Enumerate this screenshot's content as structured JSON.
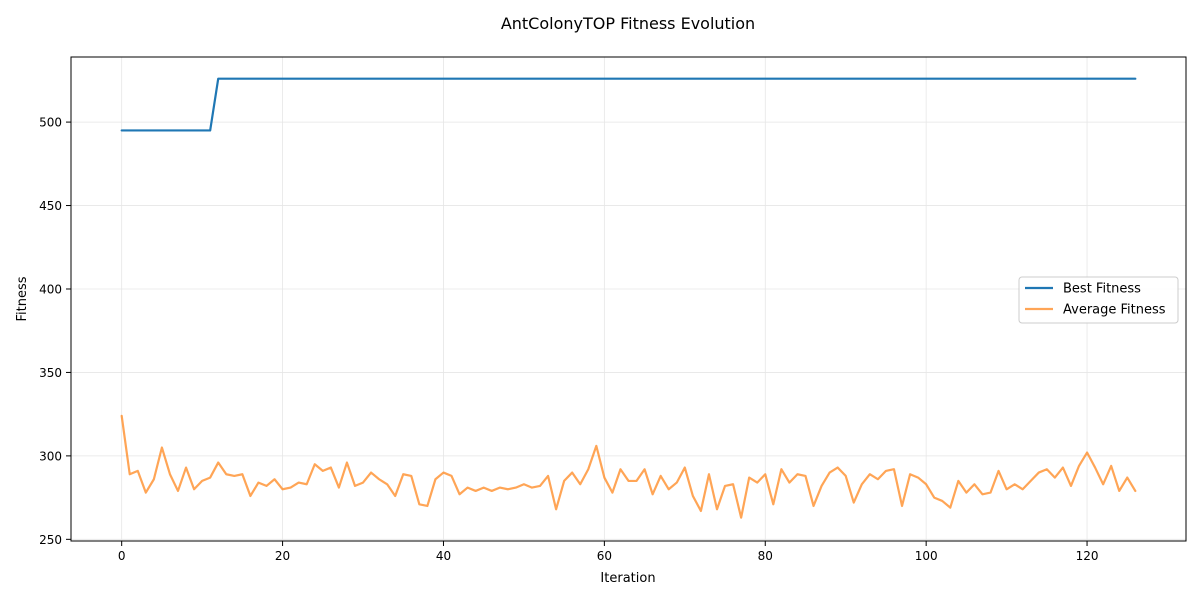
{
  "chart_data": {
    "type": "line",
    "title": "AntColonyTOP Fitness Evolution",
    "xlabel": "Iteration",
    "ylabel": "Fitness",
    "xlim": [
      -6.3,
      132.3
    ],
    "ylim": [
      249,
      539
    ],
    "xticks": [
      0,
      20,
      40,
      60,
      80,
      100,
      120
    ],
    "yticks": [
      250,
      300,
      350,
      400,
      450,
      500
    ],
    "grid": true,
    "legend_position": "center-right",
    "series": [
      {
        "name": "Best Fitness",
        "color": "#1f77b4",
        "x_start": 0,
        "values": [
          495,
          495,
          495,
          495,
          495,
          495,
          495,
          495,
          495,
          495,
          495,
          495,
          526,
          526,
          526,
          526,
          526,
          526,
          526,
          526,
          526,
          526,
          526,
          526,
          526,
          526,
          526,
          526,
          526,
          526,
          526,
          526,
          526,
          526,
          526,
          526,
          526,
          526,
          526,
          526,
          526,
          526,
          526,
          526,
          526,
          526,
          526,
          526,
          526,
          526,
          526,
          526,
          526,
          526,
          526,
          526,
          526,
          526,
          526,
          526,
          526,
          526,
          526,
          526,
          526,
          526,
          526,
          526,
          526,
          526,
          526,
          526,
          526,
          526,
          526,
          526,
          526,
          526,
          526,
          526,
          526,
          526,
          526,
          526,
          526,
          526,
          526,
          526,
          526,
          526,
          526,
          526,
          526,
          526,
          526,
          526,
          526,
          526,
          526,
          526,
          526,
          526,
          526,
          526,
          526,
          526,
          526,
          526,
          526,
          526,
          526,
          526,
          526,
          526,
          526,
          526,
          526,
          526,
          526,
          526,
          526,
          526,
          526,
          526,
          526,
          526,
          526
        ]
      },
      {
        "name": "Average Fitness",
        "color": "#ff7f0e",
        "x_start": 0,
        "values": [
          324,
          289,
          291,
          278,
          286,
          305,
          289,
          279,
          293,
          280,
          285,
          287,
          296,
          289,
          288,
          289,
          276,
          284,
          282,
          286,
          280,
          281,
          284,
          283,
          295,
          291,
          293,
          281,
          296,
          282,
          284,
          290,
          286,
          283,
          276,
          289,
          288,
          271,
          270,
          286,
          290,
          288,
          277,
          281,
          279,
          281,
          279,
          281,
          280,
          281,
          283,
          281,
          282,
          288,
          268,
          285,
          290,
          283,
          292,
          306,
          287,
          278,
          292,
          285,
          285,
          292,
          277,
          288,
          280,
          284,
          293,
          276,
          267,
          289,
          268,
          282,
          283,
          263,
          287,
          284,
          289,
          271,
          292,
          284,
          289,
          288,
          270,
          282,
          290,
          293,
          288,
          272,
          283,
          289,
          286,
          291,
          292,
          270,
          289,
          287,
          283,
          275,
          273,
          269,
          285,
          278,
          283,
          277,
          278,
          291,
          280,
          283,
          280,
          285,
          290,
          292,
          287,
          293,
          282,
          294,
          302,
          293,
          283,
          294,
          279,
          287,
          279
        ]
      }
    ]
  }
}
